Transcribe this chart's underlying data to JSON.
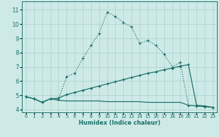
{
  "xlabel": "Humidex (Indice chaleur)",
  "background_color": "#ceeae7",
  "grid_color": "#aed4d0",
  "line_color": "#1a7068",
  "xlim": [
    -0.5,
    23.5
  ],
  "ylim": [
    3.8,
    11.6
  ],
  "yticks": [
    4,
    5,
    6,
    7,
    8,
    9,
    10,
    11
  ],
  "xticks": [
    0,
    1,
    2,
    3,
    4,
    5,
    6,
    7,
    8,
    9,
    10,
    11,
    12,
    13,
    14,
    15,
    16,
    17,
    18,
    19,
    20,
    21,
    22,
    23
  ],
  "line1_x": [
    0,
    1,
    2,
    3,
    4,
    5,
    6,
    7,
    8,
    9,
    10,
    11,
    12,
    13,
    14,
    15,
    16,
    17,
    18,
    19,
    20,
    21,
    22,
    23
  ],
  "line1_y": [
    4.9,
    4.75,
    4.5,
    4.75,
    4.7,
    6.3,
    6.55,
    7.6,
    8.5,
    9.35,
    10.85,
    10.55,
    10.1,
    9.8,
    8.65,
    8.85,
    8.5,
    7.9,
    7.0,
    7.3,
    4.3,
    4.25,
    4.2,
    4.15
  ],
  "line2_x": [
    0,
    1,
    2,
    3,
    4,
    5,
    6,
    7,
    8,
    9,
    10,
    11,
    12,
    13,
    14,
    15,
    16,
    17,
    18,
    19,
    20,
    21,
    22,
    23
  ],
  "line2_y": [
    4.9,
    4.75,
    4.5,
    4.75,
    4.8,
    5.05,
    5.2,
    5.35,
    5.5,
    5.65,
    5.8,
    5.95,
    6.1,
    6.25,
    6.4,
    6.55,
    6.65,
    6.8,
    6.9,
    7.05,
    7.15,
    4.3,
    4.25,
    4.15
  ],
  "line3_x": [
    0,
    1,
    2,
    3,
    4,
    5,
    6,
    7,
    8,
    9,
    10,
    11,
    12,
    13,
    14,
    15,
    16,
    17,
    18,
    19,
    20,
    21,
    22,
    23
  ],
  "line3_y": [
    4.9,
    4.75,
    4.5,
    4.75,
    4.65,
    4.6,
    4.6,
    4.6,
    4.6,
    4.6,
    4.55,
    4.55,
    4.55,
    4.55,
    4.55,
    4.5,
    4.5,
    4.5,
    4.5,
    4.5,
    4.3,
    4.25,
    4.2,
    4.15
  ]
}
